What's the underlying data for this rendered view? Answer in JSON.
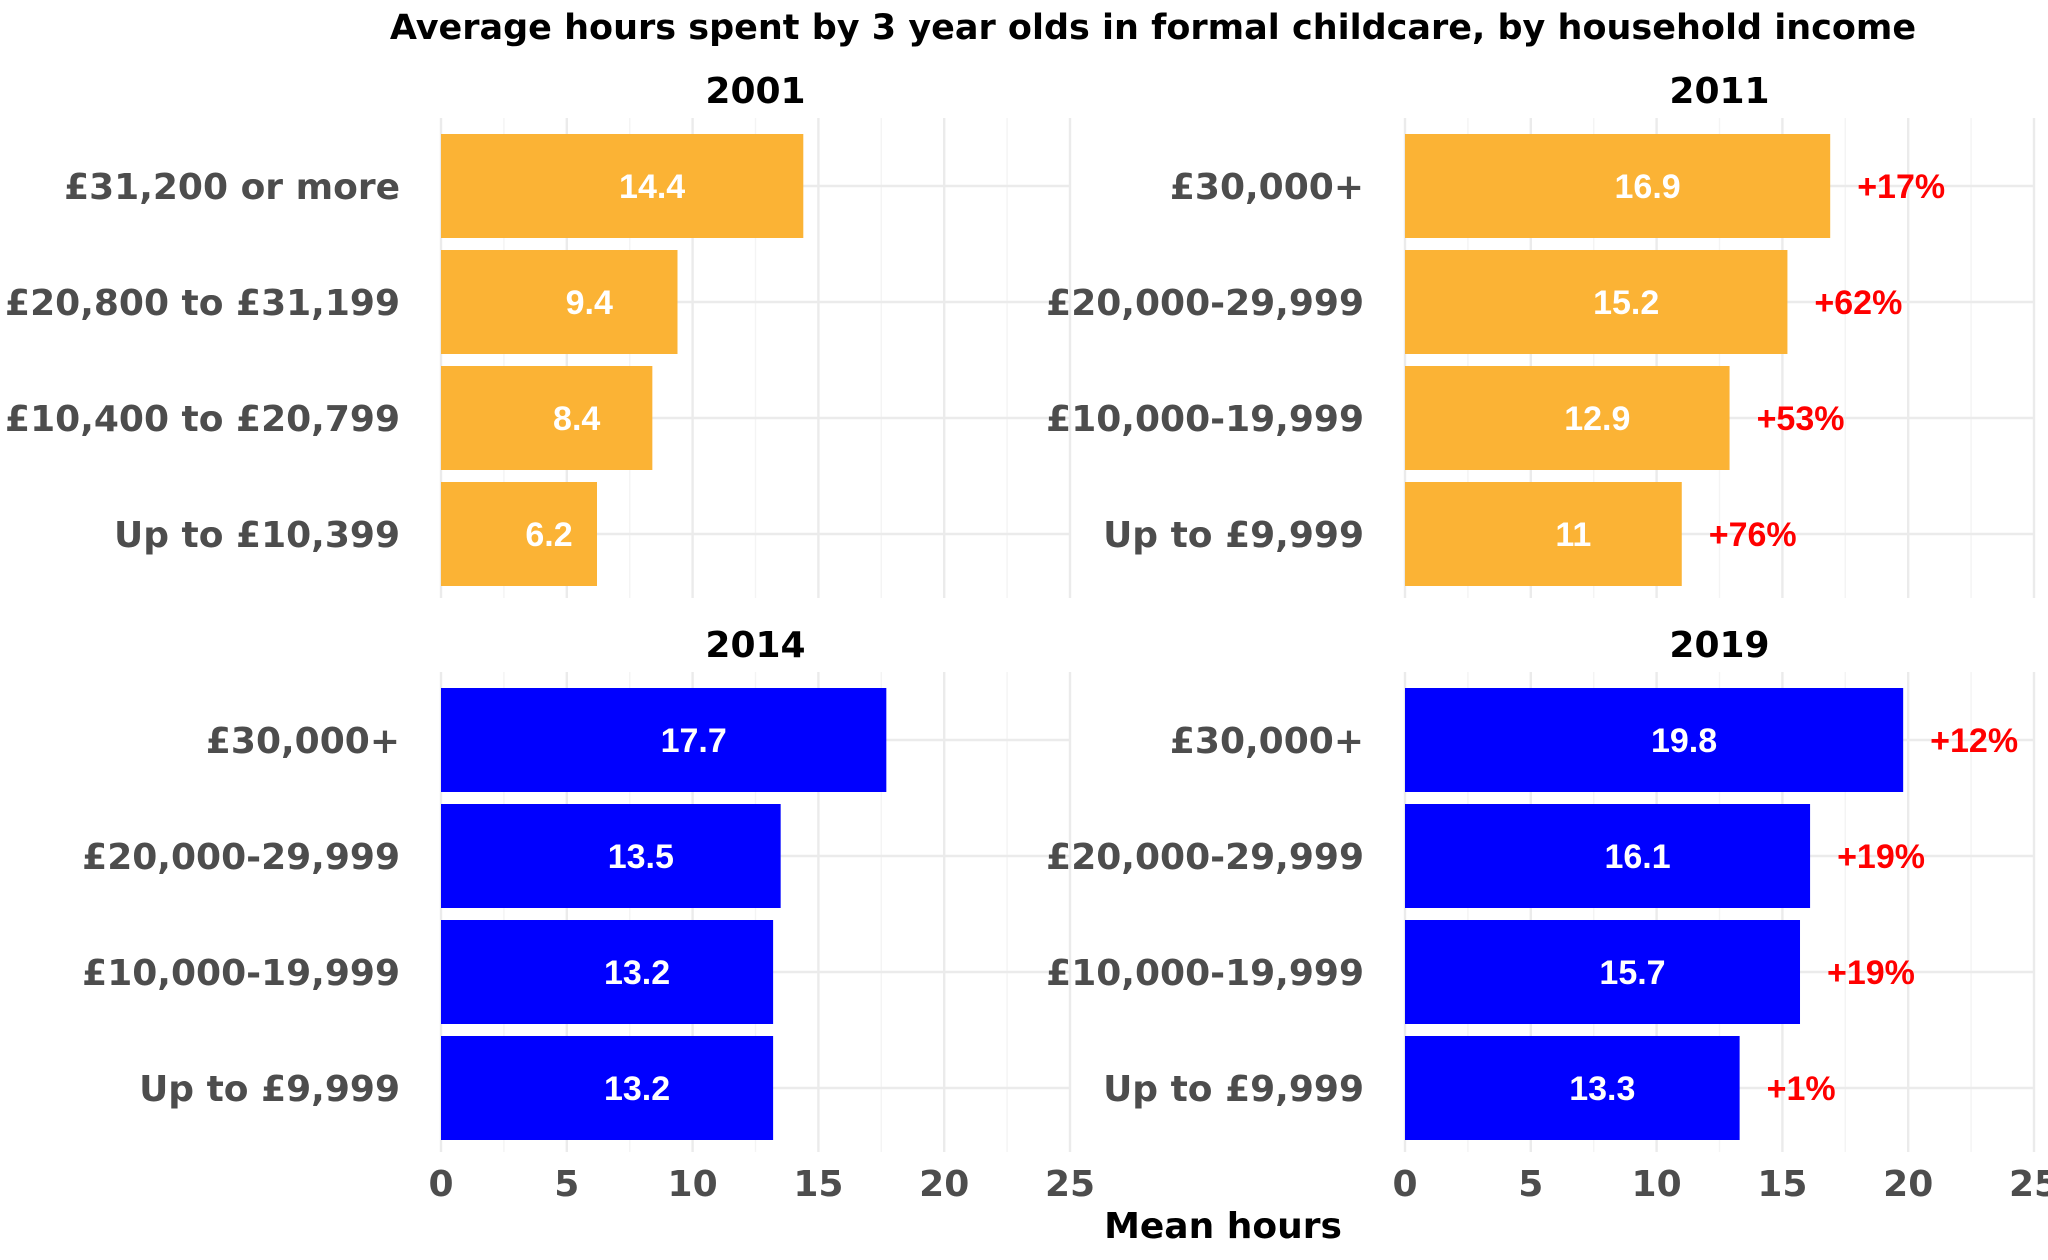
{
  "chart_data": {
    "type": "bar",
    "title": "Average hours spent by 3 year olds in formal childcare, by household income",
    "xlabel": "Mean hours",
    "xlim": [
      0,
      25
    ],
    "xticks": [
      0,
      5,
      10,
      15,
      20,
      25
    ],
    "grid": true,
    "orientation": "horizontal",
    "colors": {
      "older_years": "#fbb335",
      "recent_years": "#0000ff",
      "change_label": "#ff0000",
      "value_label": "#ffffff"
    },
    "panels": [
      {
        "title": "2001",
        "categories": [
          "£31,200 or more",
          "£20,800 to £31,199",
          "£10,400 to £20,799",
          "Up to £10,399"
        ],
        "values": [
          14.4,
          9.4,
          8.4,
          6.2
        ],
        "value_labels": [
          "14.4",
          "9.4",
          "8.4",
          "6.2"
        ],
        "change_labels": [],
        "color": "#fbb335"
      },
      {
        "title": "2011",
        "categories": [
          "£30,000+",
          "£20,000-29,999",
          "£10,000-19,999",
          "Up to £9,999"
        ],
        "values": [
          16.9,
          15.2,
          12.9,
          11
        ],
        "value_labels": [
          "16.9",
          "15.2",
          "12.9",
          "11"
        ],
        "change_labels": [
          "+17%",
          "+62%",
          "+53%",
          "+76%"
        ],
        "color": "#fbb335"
      },
      {
        "title": "2014",
        "categories": [
          "£30,000+",
          "£20,000-29,999",
          "£10,000-19,999",
          "Up to £9,999"
        ],
        "values": [
          17.7,
          13.5,
          13.2,
          13.2
        ],
        "value_labels": [
          "17.7",
          "13.5",
          "13.2",
          "13.2"
        ],
        "change_labels": [],
        "color": "#0000ff"
      },
      {
        "title": "2019",
        "categories": [
          "£30,000+",
          "£20,000-29,999",
          "£10,000-19,999",
          "Up to £9,999"
        ],
        "values": [
          19.8,
          16.1,
          15.7,
          13.3
        ],
        "value_labels": [
          "19.8",
          "16.1",
          "15.7",
          "13.3"
        ],
        "change_labels": [
          "+12%",
          "+19%",
          "+19%",
          "+1%"
        ],
        "color": "#0000ff"
      }
    ]
  }
}
